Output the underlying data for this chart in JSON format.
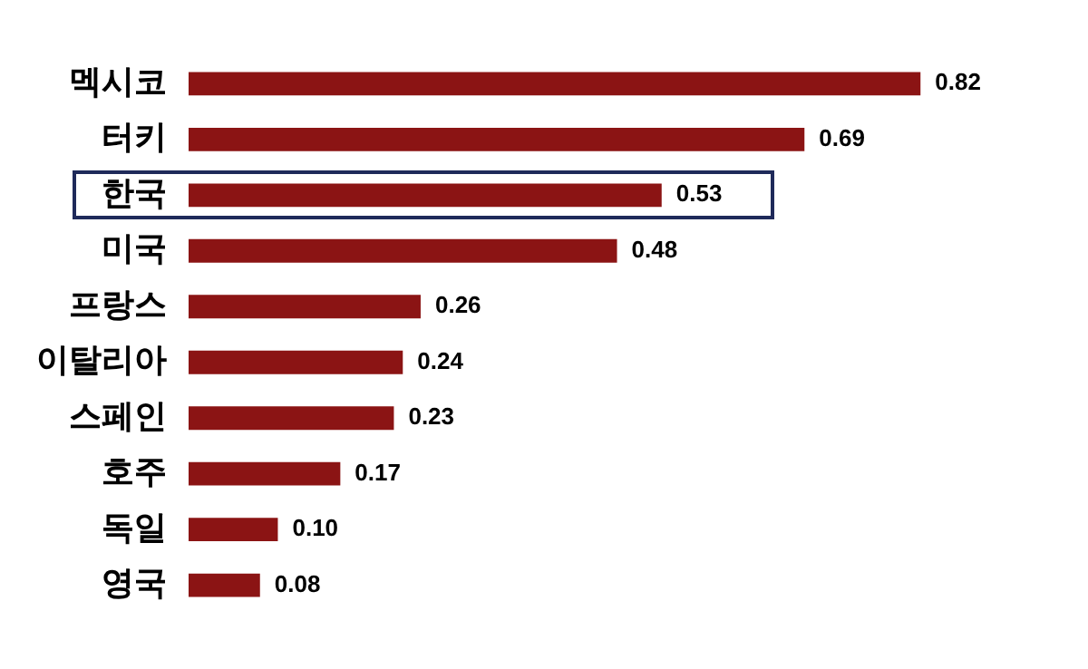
{
  "chart_data": {
    "type": "bar",
    "orientation": "horizontal",
    "categories": [
      "멕시코",
      "터키",
      "한국",
      "미국",
      "프랑스",
      "이탈리아",
      "스페인",
      "호주",
      "독일",
      "영국"
    ],
    "values": [
      0.82,
      0.69,
      0.53,
      0.48,
      0.26,
      0.24,
      0.23,
      0.17,
      0.1,
      0.08
    ],
    "color": "#8b1414",
    "data_labels": true,
    "value_labels": [
      "0.82",
      "0.69",
      "0.53",
      "0.48",
      "0.26",
      "0.24",
      "0.23",
      "0.17",
      "0.10",
      "0.08"
    ],
    "grid": false,
    "legend": false
  }
}
